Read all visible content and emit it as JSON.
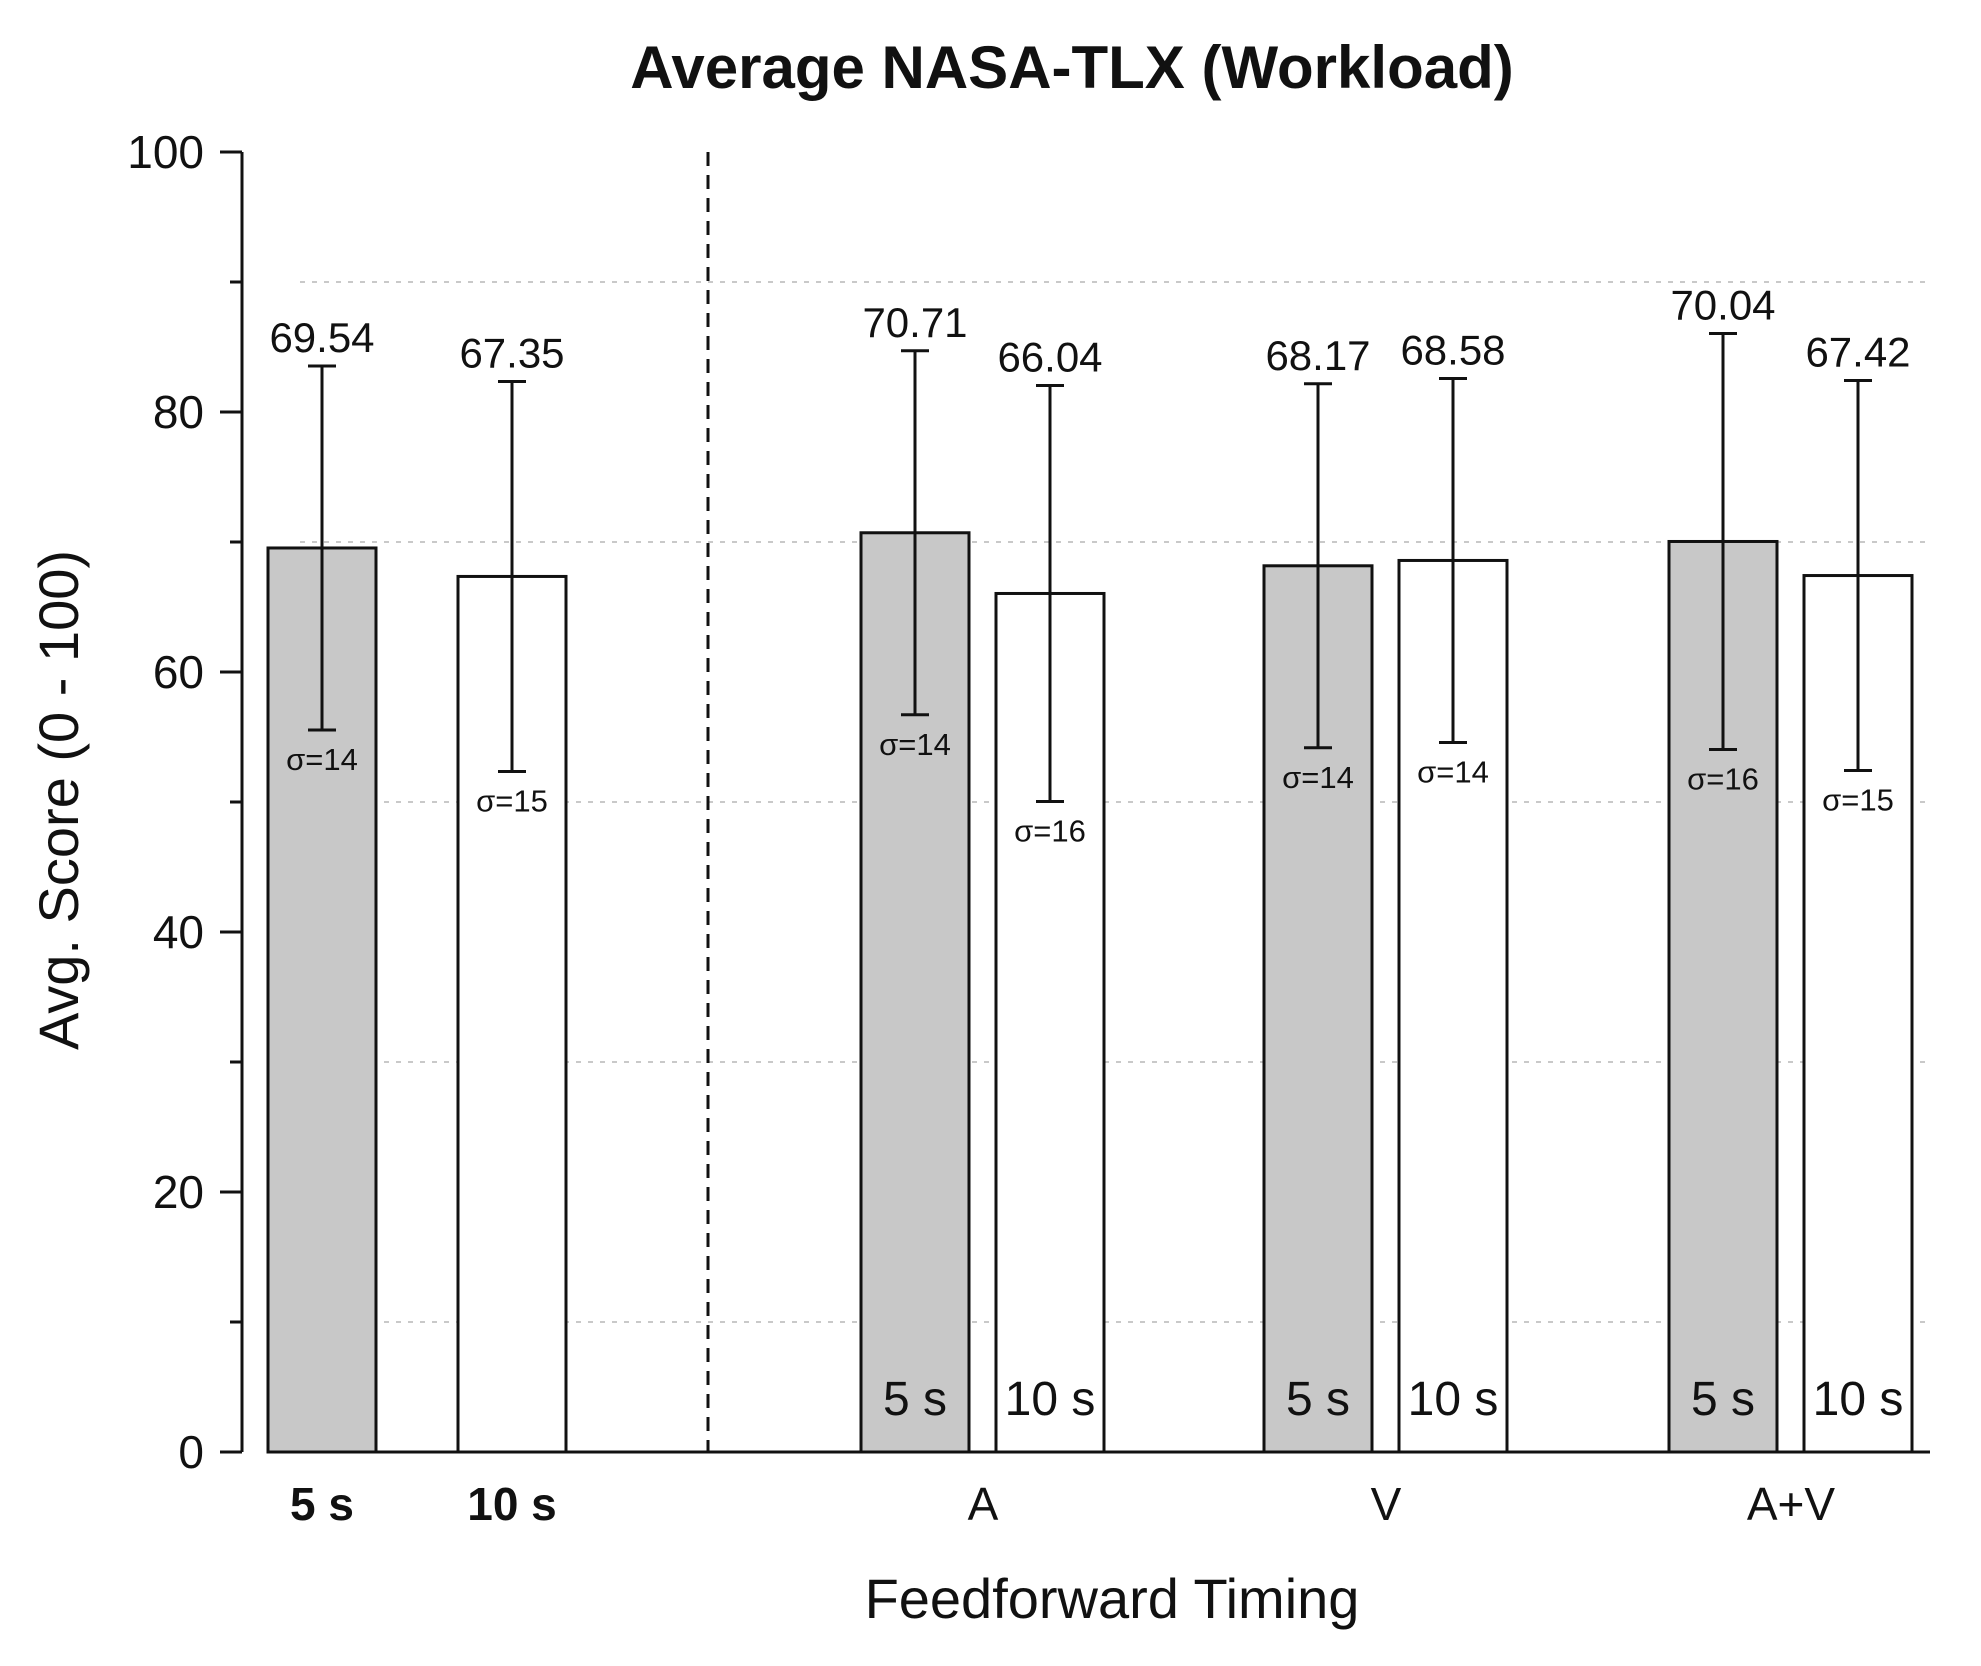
{
  "chart_data": {
    "type": "bar",
    "title": "Average NASA-TLX (Workload)",
    "xlabel": "Feedforward Timing",
    "ylabel": "Avg. Score (0 - 100)",
    "ylim": [
      0,
      100
    ],
    "y_ticks": [
      "0",
      "20",
      "40",
      "60",
      "80",
      "100"
    ],
    "grid": "dotted horizontal at 10, 30, 50, 70, 90",
    "colors": {
      "five_s": "#c8c8c8",
      "ten_s": "#ffffff",
      "edge": "#111111"
    },
    "groups": [
      {
        "category": "",
        "label_five": "5 s",
        "label_ten": "10 s",
        "bars": [
          {
            "timing": "5 s",
            "value": 69.54,
            "value_label": "69.54",
            "sd": 14,
            "sd_label": "σ=14"
          },
          {
            "timing": "10 s",
            "value": 67.35,
            "value_label": "67.35",
            "sd": 15,
            "sd_label": "σ=15"
          }
        ]
      },
      {
        "category": "A",
        "bars": [
          {
            "timing": "5 s",
            "value": 70.71,
            "value_label": "70.71",
            "sd": 14,
            "sd_label": "σ=14"
          },
          {
            "timing": "10 s",
            "value": 66.04,
            "value_label": "66.04",
            "sd": 16,
            "sd_label": "σ=16"
          }
        ]
      },
      {
        "category": "V",
        "bars": [
          {
            "timing": "5 s",
            "value": 68.17,
            "value_label": "68.17",
            "sd": 14,
            "sd_label": "σ=14"
          },
          {
            "timing": "10 s",
            "value": 68.58,
            "value_label": "68.58",
            "sd": 14,
            "sd_label": "σ=14"
          }
        ]
      },
      {
        "category": "A+V",
        "bars": [
          {
            "timing": "5 s",
            "value": 70.04,
            "value_label": "70.04",
            "sd": 16,
            "sd_label": "σ=16"
          },
          {
            "timing": "10 s",
            "value": 67.42,
            "value_label": "67.42",
            "sd": 15,
            "sd_label": "σ=15"
          }
        ]
      }
    ],
    "inner_labels": {
      "five": "5 s",
      "ten": "10 s"
    }
  }
}
